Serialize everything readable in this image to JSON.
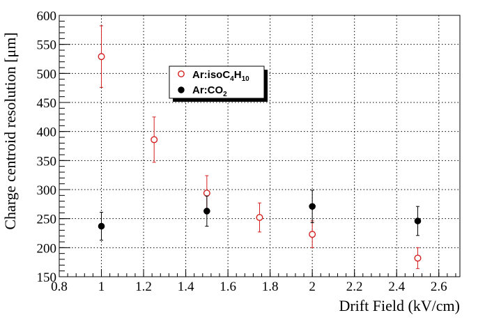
{
  "chart_data": {
    "type": "scatter",
    "xlabel": "Drift Field (kV/cm)",
    "ylabel": "Charge centroid resolution [μm]",
    "xlim": [
      0.8,
      2.7
    ],
    "ylim": [
      150,
      600
    ],
    "xticks": [
      "0.8",
      "1",
      "1.2",
      "1.4",
      "1.6",
      "1.8",
      "2",
      "2.2",
      "2.4",
      "2.6"
    ],
    "yticks": [
      "150",
      "200",
      "250",
      "300",
      "350",
      "400",
      "450",
      "500",
      "550",
      "600"
    ],
    "grid": true,
    "legend_position": "upper-center",
    "series": [
      {
        "name": "Ar:isoC4H10",
        "color": "#d42020",
        "marker": "open-circle",
        "x": [
          1.0,
          1.25,
          1.5,
          1.75,
          2.0,
          2.5
        ],
        "y": [
          529,
          386,
          294,
          252,
          223,
          182
        ],
        "err": [
          53,
          39,
          30,
          25,
          23,
          18
        ]
      },
      {
        "name": "Ar:CO2",
        "color": "#000000",
        "marker": "filled-circle",
        "x": [
          1.0,
          1.5,
          2.0,
          2.5
        ],
        "y": [
          237,
          263,
          271,
          246
        ],
        "err": [
          24,
          26,
          28,
          25
        ]
      }
    ]
  },
  "legend": {
    "entry1": {
      "base": "Ar:isoC",
      "sub1": "4",
      "mid": "H",
      "sub2": "10"
    },
    "entry2": {
      "base": "Ar:CO",
      "sub1": "2"
    }
  }
}
